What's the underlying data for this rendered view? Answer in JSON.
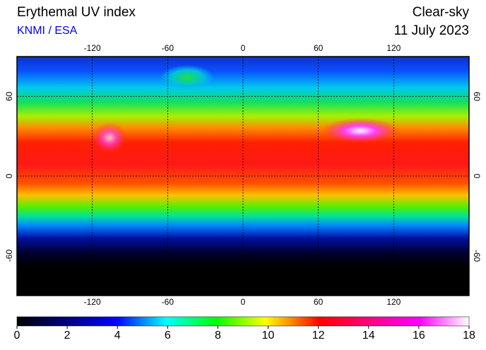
{
  "header": {
    "title": "Erythemal UV index",
    "source": "KNMI / ESA",
    "condition": "Clear-sky",
    "date": "11 July 2023"
  },
  "map": {
    "lon_range": [
      -180,
      180
    ],
    "lat_range": [
      -90,
      90
    ],
    "lon_ticks": [
      -120,
      -60,
      0,
      60,
      120
    ],
    "lat_ticks": [
      60,
      0,
      -60
    ]
  },
  "colorbar": {
    "range": [
      0,
      18
    ],
    "ticks": [
      0,
      2,
      4,
      6,
      8,
      10,
      12,
      14,
      16,
      18
    ]
  }
}
